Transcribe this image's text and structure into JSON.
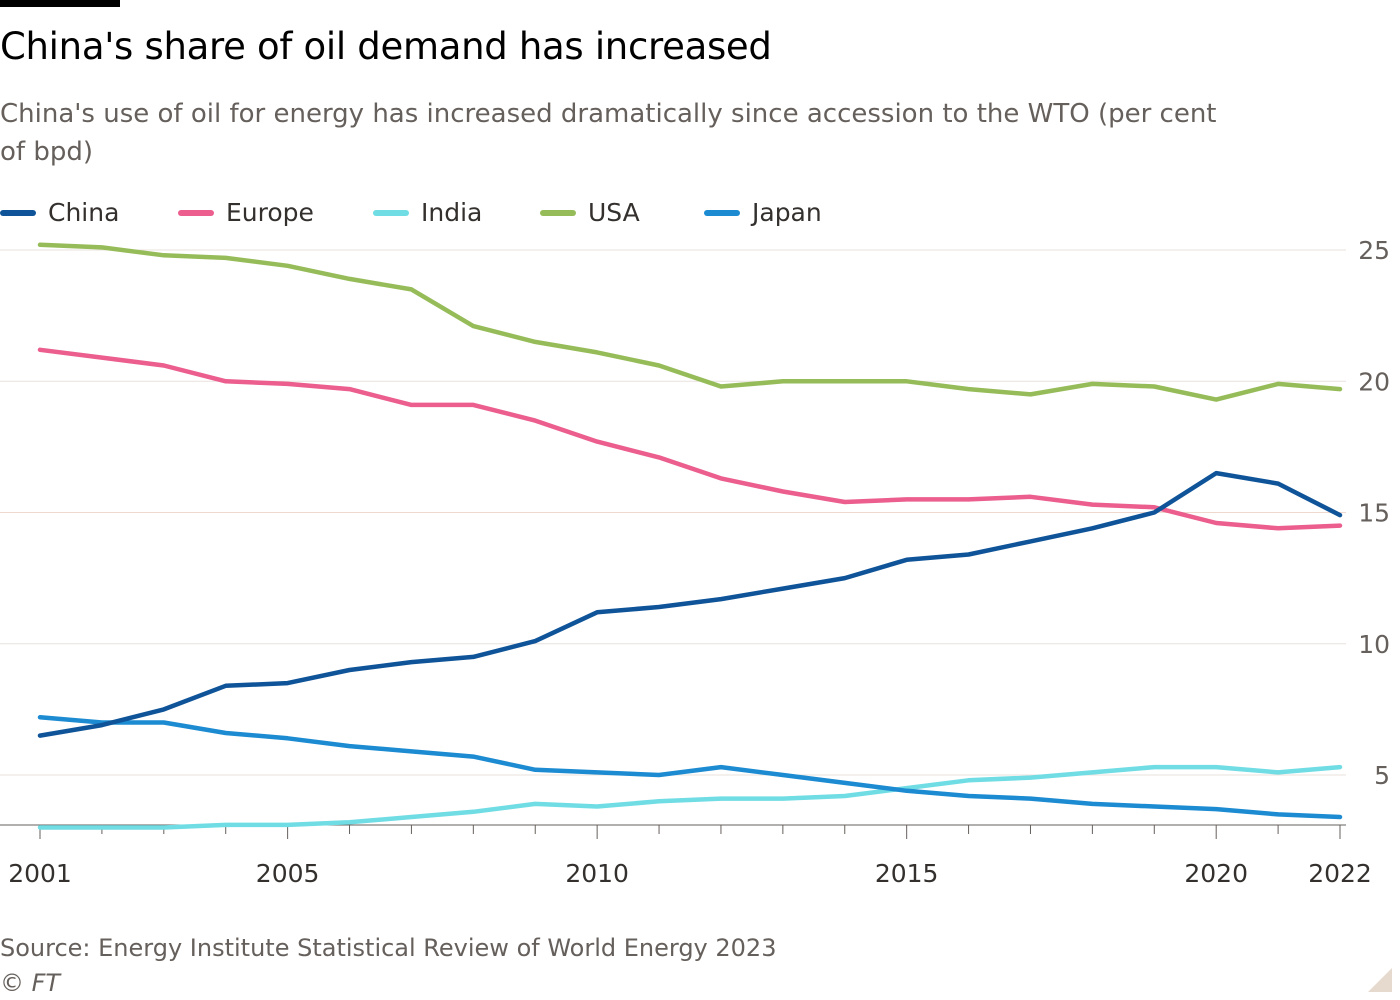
{
  "header": {
    "title": "China's share of oil demand has increased",
    "subtitle": "China's use of oil for energy has increased dramatically since accession to the WTO (per cent of bpd)"
  },
  "footer": {
    "source": "Source: Energy Institute Statistical Review of World Energy 2023",
    "copyright": "© FT"
  },
  "chart_data": {
    "type": "line",
    "title": "China's share of oil demand has increased",
    "subtitle": "China's use of oil for energy has increased dramatically since accession to the WTO (per cent of bpd)",
    "xlabel": "",
    "ylabel": "per cent of bpd",
    "x": [
      2001,
      2002,
      2003,
      2004,
      2005,
      2006,
      2007,
      2008,
      2009,
      2010,
      2011,
      2012,
      2013,
      2014,
      2015,
      2016,
      2017,
      2018,
      2019,
      2020,
      2021,
      2022
    ],
    "x_tick_labels": [
      "2001",
      "2005",
      "2010",
      "2015",
      "2020",
      "2022"
    ],
    "xlim": [
      2001,
      2022
    ],
    "y_ticks": [
      5,
      10,
      15,
      20,
      25
    ],
    "y_tick_labels": [
      "5",
      "10",
      "15",
      "20",
      "25"
    ],
    "ylim": [
      3,
      25
    ],
    "y_axis_side": "right",
    "grid": true,
    "legend_position": "top-left",
    "series": [
      {
        "name": "China",
        "color": "#0f5499",
        "values": [
          6.5,
          6.9,
          7.5,
          8.4,
          8.5,
          9.0,
          9.3,
          9.5,
          10.1,
          11.2,
          11.4,
          11.7,
          12.1,
          12.5,
          13.2,
          13.4,
          13.9,
          14.4,
          15.0,
          16.5,
          16.1,
          14.9
        ]
      },
      {
        "name": "Europe",
        "color": "#eb5e8d",
        "values": [
          21.2,
          20.9,
          20.6,
          20.0,
          19.9,
          19.7,
          19.1,
          19.1,
          18.5,
          17.7,
          17.1,
          16.3,
          15.8,
          15.4,
          15.5,
          15.5,
          15.6,
          15.3,
          15.2,
          14.6,
          14.4,
          14.5
        ]
      },
      {
        "name": "India",
        "color": "#70dce4",
        "values": [
          3.0,
          3.0,
          3.0,
          3.1,
          3.1,
          3.2,
          3.4,
          3.6,
          3.9,
          3.8,
          4.0,
          4.1,
          4.1,
          4.2,
          4.5,
          4.8,
          4.9,
          5.1,
          5.3,
          5.3,
          5.1,
          5.3
        ]
      },
      {
        "name": "USA",
        "color": "#96bc59",
        "values": [
          25.2,
          25.1,
          24.8,
          24.7,
          24.4,
          23.9,
          23.5,
          22.1,
          21.5,
          21.1,
          20.6,
          19.8,
          20.0,
          20.0,
          20.0,
          19.7,
          19.5,
          19.9,
          19.8,
          19.3,
          19.9,
          19.7
        ]
      },
      {
        "name": "Japan",
        "color": "#1c8bd1",
        "values": [
          7.2,
          7.0,
          7.0,
          6.6,
          6.4,
          6.1,
          5.9,
          5.7,
          5.2,
          5.1,
          5.0,
          5.3,
          5.0,
          4.7,
          4.4,
          4.2,
          4.1,
          3.9,
          3.8,
          3.7,
          3.5,
          3.4
        ]
      }
    ]
  }
}
